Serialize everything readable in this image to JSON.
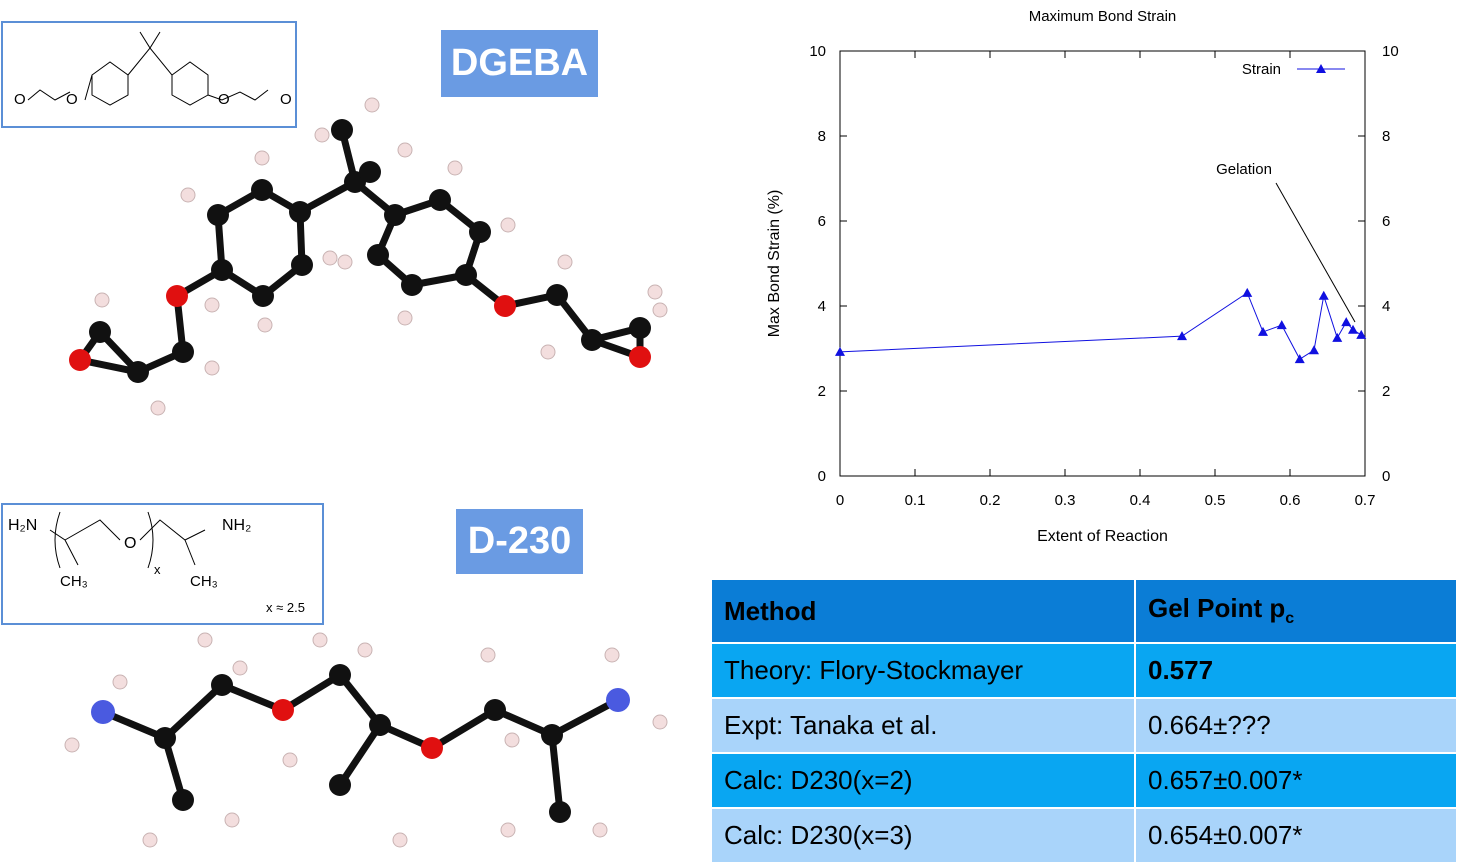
{
  "labels": {
    "dgeba": "DGEBA",
    "d230": "D-230"
  },
  "structures": {
    "dgeba": {
      "oxygens": [
        "O",
        "O",
        "O",
        "O"
      ]
    },
    "d230": {
      "amine_left": "H₂N",
      "amine_right": "NH₂",
      "oxygen": "O",
      "repeat": "x",
      "methyl_left": "CH₃",
      "methyl_right": "CH₃",
      "note": "x ≈ 2.5"
    }
  },
  "chart_data": {
    "type": "line",
    "title": "Maximum Bond Strain",
    "x_label": "Extent of Reaction",
    "y_label": "Max Bond Strain (%)",
    "x": [
      0,
      0.456,
      0.543,
      0.564,
      0.589,
      0.613,
      0.632,
      0.645,
      0.663,
      0.675,
      0.684,
      0.695
    ],
    "series": [
      {
        "name": "Strain",
        "color": "#1010e0",
        "values": [
          2.92,
          3.29,
          4.31,
          3.39,
          3.55,
          2.75,
          2.96,
          4.24,
          3.25,
          3.62,
          3.44,
          3.32
        ]
      }
    ],
    "xlim": [
      0,
      0.7
    ],
    "xticks": [
      0,
      0.1,
      0.2,
      0.3,
      0.4,
      0.5,
      0.6,
      0.7
    ],
    "ylim": [
      0,
      10
    ],
    "yticks": [
      0,
      2,
      4,
      6,
      8,
      10
    ],
    "y2lim": [
      0,
      10
    ],
    "y2ticks": [
      0,
      2,
      4,
      6,
      8,
      10
    ],
    "grid": false,
    "legend": "top-right",
    "annotations": [
      {
        "text": "Gelation"
      }
    ]
  },
  "table": {
    "header": [
      {
        "text": "Method"
      },
      {
        "text": "Gel Point p",
        "subscript": "c"
      }
    ],
    "rows": [
      [
        "Theory: Flory-Stockmayer",
        "0.577"
      ],
      [
        "Expt: Tanaka et al.",
        "0.664±???"
      ],
      [
        "Calc: D230(x=2)",
        "0.657±0.007*"
      ],
      [
        "Calc: D230(x=3)",
        "0.654±0.007*"
      ]
    ]
  }
}
